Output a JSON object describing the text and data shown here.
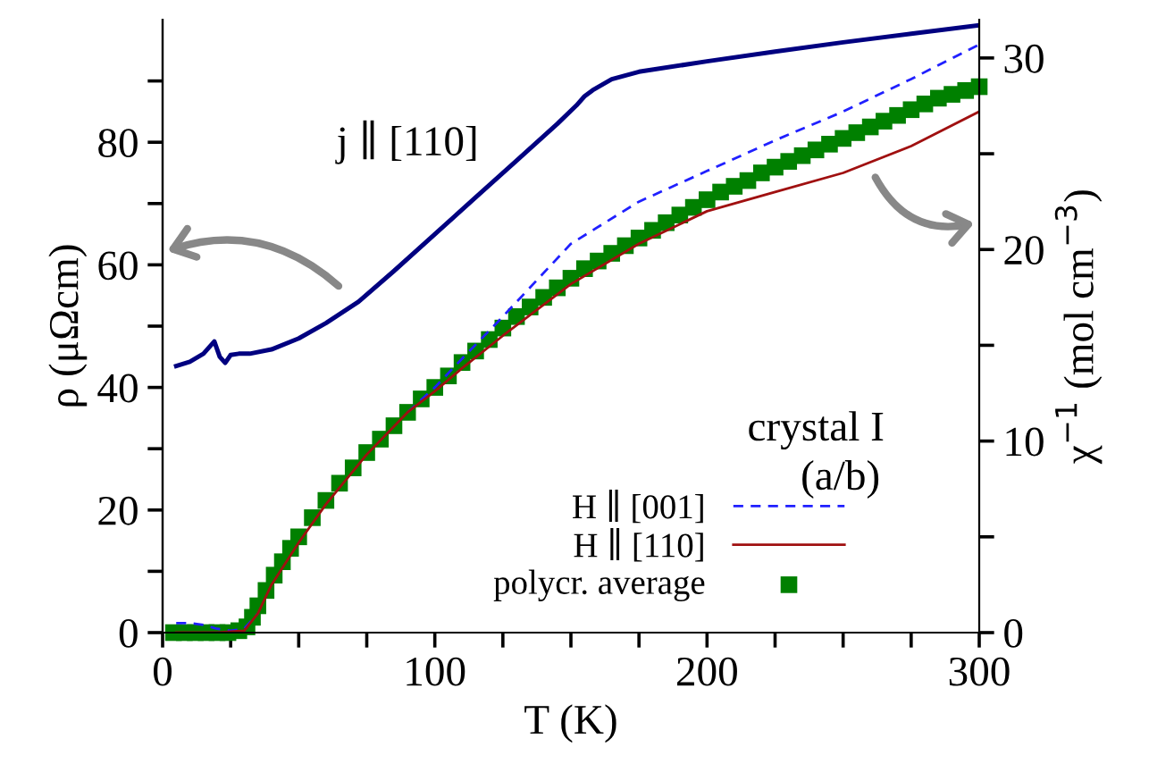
{
  "chart_data": {
    "type": "line",
    "xlabel": "T (K)",
    "ylabel": "ρ (μΩcm)",
    "y2label": "χ$^{−1}$ (mol cm$^{−3}$)",
    "xlim": [
      0,
      300
    ],
    "xticks": [
      0,
      {
        "value": 25,
        "label": null
      },
      {
        "value": 50,
        "label": null
      },
      {
        "value": 75,
        "label": null
      },
      100,
      {
        "value": 125,
        "label": null
      },
      {
        "value": 150,
        "label": null
      },
      {
        "value": 175,
        "label": null
      },
      200,
      {
        "value": 225,
        "label": null
      },
      {
        "value": 250,
        "label": null
      },
      {
        "value": 275,
        "label": null
      },
      300
    ],
    "ylim": [
      0,
      100
    ],
    "yticks": [
      0,
      {
        "value": 10,
        "label": null
      },
      20,
      {
        "value": 30,
        "label": null
      },
      40,
      {
        "value": 50,
        "label": null
      },
      60,
      {
        "value": 70,
        "label": null
      },
      80,
      {
        "value": 90,
        "label": null
      }
    ],
    "y2lim": [
      0,
      32
    ],
    "y2ticks": [
      0,
      {
        "value": 5,
        "label": null
      },
      10,
      {
        "value": 15,
        "label": null
      },
      20,
      {
        "value": 25,
        "label": null
      },
      30
    ],
    "grid": false,
    "legend": "bottom",
    "annotations": [
      "j ∥ [110]",
      "crystal I",
      "(a/b)"
    ],
    "series": [
      {
        "color": "#000080",
        "line_style": "solid",
        "marker": "none",
        "axis": "y",
        "x": [
          5,
          10,
          15,
          19,
          21,
          23,
          25,
          28,
          32,
          40,
          50,
          60,
          72,
          85,
          100,
          115,
          130,
          145,
          152,
          155,
          158,
          165,
          175,
          200,
          225,
          250,
          275,
          300
        ],
        "values": [
          43.5,
          44.2,
          45.5,
          47.5,
          45,
          44,
          45.3,
          45.5,
          45.5,
          46.2,
          48,
          50.5,
          54,
          59,
          65,
          71,
          77,
          83,
          86,
          87.5,
          88.5,
          90.3,
          91.5,
          93.2,
          94.8,
          96.3,
          97.7,
          99.1
        ]
      },
      {
        "name": "H ∥ [001]",
        "color": "#2020ff",
        "line_style": "dashed",
        "marker": "none",
        "axis": "y2",
        "x": [
          5,
          10,
          15,
          20,
          25,
          30,
          35,
          40,
          50,
          60,
          75,
          90,
          100,
          110,
          125,
          150,
          175,
          200,
          225,
          250,
          275,
          300
        ],
        "values": [
          0.5,
          0.5,
          0.4,
          0.2,
          0.1,
          0.2,
          1,
          null,
          null,
          null,
          null,
          11.5,
          12.8,
          14.3,
          16.5,
          20.3,
          22.5,
          24.1,
          25.7,
          27.2,
          28.9,
          30.7
        ]
      },
      {
        "name": "H ∥ [110]",
        "color": "#a01010",
        "line_style": "solid",
        "marker": "none",
        "axis": "y2",
        "x": [
          5,
          10,
          20,
          30,
          35,
          40,
          50,
          60,
          75,
          90,
          100,
          110,
          125,
          150,
          175,
          200,
          225,
          250,
          275,
          300
        ],
        "values": [
          0,
          0,
          0,
          0.1,
          1,
          2.5,
          4.7,
          6.7,
          9.3,
          11.5,
          12.6,
          13.8,
          15.5,
          18.2,
          20.3,
          22.0,
          23.0,
          24.0,
          25.4,
          27.2
        ]
      },
      {
        "name": "polycr. average",
        "color": "#008000",
        "type": "scatter",
        "marker": "square",
        "axis": "y2",
        "x": [
          4,
          8,
          12,
          16,
          20,
          24,
          28,
          31,
          33,
          35,
          38,
          41,
          44,
          47,
          50,
          55,
          60,
          65,
          70,
          75,
          80,
          85,
          90,
          95,
          100,
          105,
          110,
          115,
          120,
          125,
          130,
          135,
          140,
          145,
          150,
          155,
          160,
          165,
          170,
          175,
          180,
          185,
          190,
          195,
          200,
          205,
          210,
          215,
          220,
          225,
          230,
          235,
          240,
          245,
          250,
          255,
          260,
          265,
          270,
          275,
          280,
          285,
          290,
          295,
          300
        ],
        "values": [
          0,
          0,
          0,
          0,
          0,
          0,
          0.1,
          0.3,
          0.8,
          1.4,
          2.2,
          3,
          3.7,
          4.4,
          5,
          6,
          6.9,
          7.8,
          8.6,
          9.4,
          10.1,
          10.8,
          11.5,
          12.2,
          12.8,
          13.4,
          14.1,
          14.7,
          15.3,
          15.9,
          16.5,
          17,
          17.5,
          18,
          18.5,
          19,
          19.4,
          19.8,
          20.2,
          20.6,
          21,
          21.4,
          21.8,
          22.2,
          22.6,
          23,
          23.3,
          23.6,
          24,
          24.3,
          24.6,
          24.9,
          25.2,
          25.5,
          25.8,
          26.1,
          26.4,
          26.7,
          27,
          27.3,
          27.6,
          27.9,
          28.1,
          28.3,
          28.5
        ]
      }
    ]
  }
}
